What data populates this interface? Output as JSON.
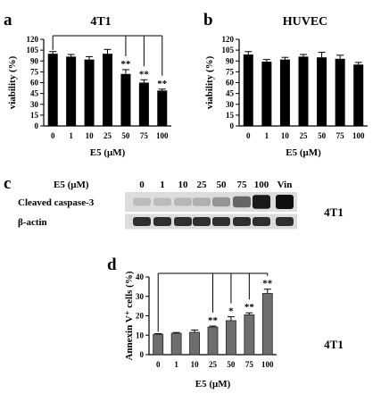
{
  "panels": {
    "a": {
      "letter": "a",
      "title": "4T1"
    },
    "b": {
      "letter": "b",
      "title": "HUVEC"
    },
    "c": {
      "letter": "c"
    },
    "d": {
      "letter": "d",
      "side_label": "4T1"
    }
  },
  "blot": {
    "header_label": "E5 (μM)",
    "lanes": [
      "0",
      "1",
      "10",
      "25",
      "50",
      "75",
      "100",
      "Vin"
    ],
    "rows": [
      {
        "label": "Cleaved caspase-3",
        "intensity": [
          0.2,
          0.2,
          0.22,
          0.25,
          0.38,
          0.6,
          0.95,
          1.0
        ]
      },
      {
        "label": "β-actin",
        "intensity": [
          0.85,
          0.85,
          0.85,
          0.85,
          0.85,
          0.85,
          0.85,
          0.85
        ]
      }
    ],
    "side_label": "4T1"
  },
  "chart_data": [
    {
      "id": "a",
      "type": "bar",
      "title": "4T1",
      "categories": [
        "0",
        "1",
        "10",
        "25",
        "50",
        "75",
        "100"
      ],
      "values": [
        100,
        96,
        92,
        100,
        72,
        60,
        49
      ],
      "errors": [
        3,
        3,
        4,
        6,
        6,
        4,
        2
      ],
      "significance": [
        "",
        "",
        "",
        "",
        "**",
        "**",
        "**"
      ],
      "xlabel": "E5  (μM)",
      "ylabel": "viability  (%)",
      "ylim": [
        0,
        120
      ],
      "yticks": [
        "0",
        "15",
        "30",
        "45",
        "60",
        "75",
        "90",
        "105",
        "120"
      ],
      "bar_color": "#000000",
      "comparison_bracket": {
        "from": "0",
        "to": [
          "50",
          "75",
          "100"
        ]
      }
    },
    {
      "id": "b",
      "type": "bar",
      "title": "HUVEC",
      "categories": [
        "0",
        "1",
        "10",
        "25",
        "50",
        "75",
        "100"
      ],
      "values": [
        99,
        89,
        92,
        96,
        95,
        93,
        85
      ],
      "errors": [
        4,
        3,
        3,
        3,
        7,
        5,
        3
      ],
      "significance": [
        "",
        "",
        "",
        "",
        "",
        "",
        ""
      ],
      "xlabel": "E5  (μM)",
      "ylabel": "viability  (%)",
      "ylim": [
        0,
        120
      ],
      "yticks": [
        "0",
        "15",
        "30",
        "45",
        "60",
        "75",
        "90",
        "105",
        "120"
      ],
      "bar_color": "#000000"
    },
    {
      "id": "d",
      "type": "bar",
      "categories": [
        "0",
        "1",
        "10",
        "25",
        "50",
        "75",
        "100"
      ],
      "values": [
        10.5,
        11,
        11.5,
        14.2,
        17.5,
        20.5,
        31.5
      ],
      "errors": [
        0.3,
        0.4,
        1.2,
        0.5,
        2,
        1,
        2.2
      ],
      "significance": [
        "",
        "",
        "",
        "**",
        "*",
        "**",
        "**"
      ],
      "xlabel": "E5  (μM)",
      "ylabel": "Annexin V⁺ cells  (%)",
      "ylim": [
        0,
        40
      ],
      "yticks": [
        "0",
        "10",
        "20",
        "30",
        "40"
      ],
      "bar_color": "#6e6e6e",
      "comparison_bracket": {
        "from": "0",
        "to": [
          "25",
          "50",
          "75",
          "100"
        ]
      }
    }
  ]
}
